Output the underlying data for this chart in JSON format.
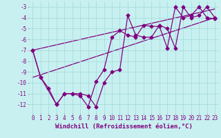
{
  "xlabel": "Windchill (Refroidissement éolien,°C)",
  "bg_color": "#c8f0f0",
  "line_color": "#800080",
  "grid_color": "#a0d8d8",
  "xlim": [
    -0.5,
    23.5
  ],
  "ylim": [
    -12.8,
    -2.5
  ],
  "xticks": [
    0,
    1,
    2,
    3,
    4,
    5,
    6,
    7,
    8,
    9,
    10,
    11,
    12,
    13,
    14,
    15,
    16,
    17,
    18,
    19,
    20,
    21,
    22,
    23
  ],
  "yticks": [
    -12,
    -11,
    -10,
    -9,
    -8,
    -7,
    -6,
    -5,
    -4,
    -3
  ],
  "line1_x": [
    0,
    1,
    3,
    4,
    5,
    6,
    7,
    8,
    9,
    10,
    11,
    12,
    13,
    14,
    15,
    16,
    17,
    18,
    19,
    20,
    21,
    22,
    23
  ],
  "line1_y": [
    -7,
    -9.5,
    -12,
    -11,
    -11,
    -11,
    -11.2,
    -12.2,
    -10,
    -9,
    -8.8,
    -3.8,
    -5.6,
    -5.8,
    -5.8,
    -4.7,
    -5.0,
    -6.8,
    -3.0,
    -4.0,
    -3.8,
    -3.0,
    -4.0
  ],
  "line2_x": [
    0,
    1,
    2,
    3,
    4,
    5,
    6,
    7,
    8,
    9,
    10,
    11,
    12,
    13,
    14,
    15,
    16,
    17,
    18,
    19,
    20,
    21,
    22,
    23
  ],
  "line2_y": [
    -7,
    -9.5,
    -10.5,
    -12,
    -11,
    -11,
    -11.2,
    -12.2,
    -9.9,
    -8.8,
    -5.8,
    -5.2,
    -5.6,
    -5.8,
    -4.7,
    -4.8,
    -4.8,
    -6.8,
    -3.0,
    -4.0,
    -3.8,
    -3.0,
    -4.0,
    -4.1
  ],
  "trend1_x": [
    0,
    23
  ],
  "trend1_y": [
    -9.5,
    -4.0
  ],
  "trend2_x": [
    0,
    23
  ],
  "trend2_y": [
    -7.0,
    -3.2
  ],
  "marker": "D",
  "markersize": 2.5,
  "linewidth": 0.9,
  "xlabel_fontsize": 6.5,
  "tick_fontsize": 5.5
}
